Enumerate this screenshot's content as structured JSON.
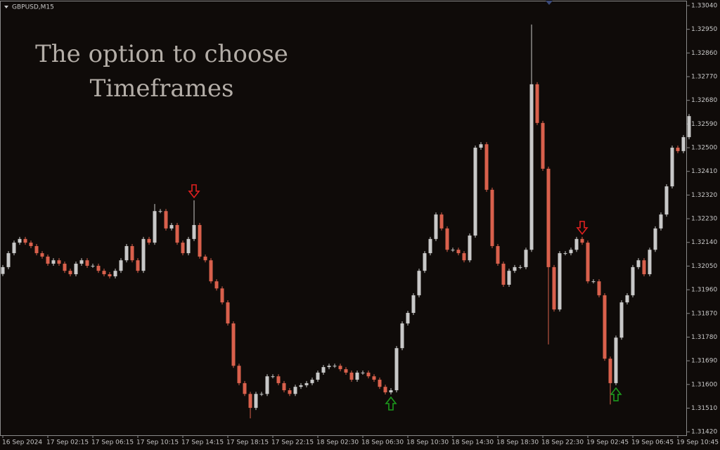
{
  "chart_data": {
    "type": "candlestick",
    "symbol_label": "GBPUSD,M15",
    "overlay_text": [
      "The option to choose",
      "Timeframes"
    ],
    "colors": {
      "up": "#c8c8c8",
      "down": "#d9604c",
      "signal_up": "#1c9a1c",
      "signal_down": "#e02020"
    },
    "ylim": [
      1.31407,
      1.33056
    ],
    "yticks": [
      {
        "value": 1.3304,
        "label": "1.33040"
      },
      {
        "value": 1.3295,
        "label": "1.32950"
      },
      {
        "value": 1.3286,
        "label": "1.32860"
      },
      {
        "value": 1.3277,
        "label": "1.32770"
      },
      {
        "value": 1.3268,
        "label": "1.32680"
      },
      {
        "value": 1.3259,
        "label": "1.32590"
      },
      {
        "value": 1.325,
        "label": "1.32500"
      },
      {
        "value": 1.3241,
        "label": "1.32410"
      },
      {
        "value": 1.3232,
        "label": "1.32320"
      },
      {
        "value": 1.3223,
        "label": "1.32230"
      },
      {
        "value": 1.3214,
        "label": "1.32140"
      },
      {
        "value": 1.3205,
        "label": "1.32050"
      },
      {
        "value": 1.3196,
        "label": "1.31960"
      },
      {
        "value": 1.3187,
        "label": "1.31870"
      },
      {
        "value": 1.3178,
        "label": "1.31780"
      },
      {
        "value": 1.3169,
        "label": "1.31690"
      },
      {
        "value": 1.316,
        "label": "1.31600"
      },
      {
        "value": 1.3151,
        "label": "1.31510"
      },
      {
        "value": 1.3142,
        "label": "1.31420"
      }
    ],
    "categories": [
      "16 Sep 2024",
      null,
      null,
      null,
      null,
      null,
      null,
      null,
      "17 Sep 02:15",
      null,
      null,
      null,
      null,
      null,
      null,
      null,
      "17 Sep 06:15",
      null,
      null,
      null,
      null,
      null,
      null,
      null,
      "17 Sep 10:15",
      null,
      null,
      null,
      null,
      null,
      null,
      null,
      "17 Sep 14:15",
      null,
      null,
      null,
      null,
      null,
      null,
      null,
      "17 Sep 18:15",
      null,
      null,
      null,
      null,
      null,
      null,
      null,
      "17 Sep 22:15",
      null,
      null,
      null,
      null,
      null,
      null,
      null,
      "18 Sep 02:30",
      null,
      null,
      null,
      null,
      null,
      null,
      null,
      "18 Sep 06:30",
      null,
      null,
      null,
      null,
      null,
      null,
      null,
      "18 Sep 10:30",
      null,
      null,
      null,
      null,
      null,
      null,
      null,
      "18 Sep 14:30",
      null,
      null,
      null,
      null,
      null,
      null,
      null,
      "18 Sep 18:30",
      null,
      null,
      null,
      null,
      null,
      null,
      null,
      "18 Sep 22:30",
      null,
      null,
      null,
      null,
      null,
      null,
      null,
      "19 Sep 02:45",
      null,
      null,
      null,
      null,
      null,
      null,
      null,
      "19 Sep 06:45",
      null,
      null,
      null,
      null,
      null,
      null,
      null,
      "19 Sep 10:45",
      null,
      null
    ],
    "candles": [
      [
        1.3202,
        1.32054,
        1.32012,
        1.32046
      ],
      [
        1.32046,
        1.32107,
        1.32038,
        1.32099
      ],
      [
        1.32099,
        1.32147,
        1.32091,
        1.32139
      ],
      [
        1.32139,
        1.32161,
        1.32131,
        1.32153
      ],
      [
        1.32153,
        1.32161,
        1.32131,
        1.32139
      ],
      [
        1.32139,
        1.32147,
        1.32118,
        1.32126
      ],
      [
        1.32126,
        1.32134,
        1.32091,
        1.32099
      ],
      [
        1.32099,
        1.32107,
        1.32078,
        1.32086
      ],
      [
        1.32086,
        1.32094,
        1.32051,
        1.32059
      ],
      [
        1.32059,
        1.3208,
        1.32051,
        1.32072
      ],
      [
        1.32072,
        1.3208,
        1.32051,
        1.32059
      ],
      [
        1.32059,
        1.32067,
        1.32024,
        1.32032
      ],
      [
        1.32032,
        1.3204,
        1.32011,
        1.32019
      ],
      [
        1.32019,
        1.32067,
        1.32011,
        1.32059
      ],
      [
        1.32059,
        1.3208,
        1.32051,
        1.32072
      ],
      [
        1.32072,
        1.3208,
        1.32043,
        1.32051
      ],
      [
        1.32051,
        1.32059,
        1.32043,
        1.32051
      ],
      [
        1.32051,
        1.32059,
        1.32024,
        1.32032
      ],
      [
        1.32032,
        1.3204,
        1.32011,
        1.32019
      ],
      [
        1.32019,
        1.32027,
        1.32003,
        1.32011
      ],
      [
        1.32011,
        1.3204,
        1.32003,
        1.32032
      ],
      [
        1.32032,
        1.3208,
        1.32024,
        1.32072
      ],
      [
        1.32072,
        1.32134,
        1.32064,
        1.32126
      ],
      [
        1.32126,
        1.32134,
        1.32064,
        1.32072
      ],
      [
        1.32072,
        1.3208,
        1.32024,
        1.32032
      ],
      [
        1.32032,
        1.32161,
        1.32024,
        1.32153
      ],
      [
        1.32153,
        1.32161,
        1.32131,
        1.32139
      ],
      [
        1.32139,
        1.32286,
        1.32131,
        1.32259
      ],
      [
        1.32259,
        1.32267,
        1.32251,
        1.32259
      ],
      [
        1.32259,
        1.32267,
        1.32185,
        1.32193
      ],
      [
        1.32193,
        1.32214,
        1.32185,
        1.32206
      ],
      [
        1.32206,
        1.32214,
        1.32131,
        1.32139
      ],
      [
        1.32139,
        1.32147,
        1.32091,
        1.32099
      ],
      [
        1.32099,
        1.32161,
        1.32091,
        1.32153
      ],
      [
        1.32153,
        1.323,
        1.32145,
        1.32206
      ],
      [
        1.32206,
        1.32214,
        1.32078,
        1.32086
      ],
      [
        1.32086,
        1.32094,
        1.32064,
        1.32072
      ],
      [
        1.32072,
        1.3208,
        1.31984,
        1.31992
      ],
      [
        1.31992,
        1.32,
        1.31957,
        1.31965
      ],
      [
        1.31965,
        1.31973,
        1.31904,
        1.31912
      ],
      [
        1.31912,
        1.3192,
        1.31824,
        1.31832
      ],
      [
        1.31832,
        1.3184,
        1.31663,
        1.31671
      ],
      [
        1.31671,
        1.31679,
        1.31597,
        1.31605
      ],
      [
        1.31605,
        1.31613,
        1.31556,
        1.31564
      ],
      [
        1.31564,
        1.31572,
        1.31471,
        1.31511
      ],
      [
        1.31511,
        1.31572,
        1.31503,
        1.31564
      ],
      [
        1.31564,
        1.31572,
        1.31556,
        1.31564
      ],
      [
        1.31564,
        1.31639,
        1.31556,
        1.31631
      ],
      [
        1.31631,
        1.31639,
        1.31623,
        1.31631
      ],
      [
        1.31631,
        1.31639,
        1.31597,
        1.31605
      ],
      [
        1.31605,
        1.31613,
        1.3157,
        1.31578
      ],
      [
        1.31578,
        1.31586,
        1.31556,
        1.31564
      ],
      [
        1.31564,
        1.31599,
        1.31556,
        1.31591
      ],
      [
        1.31591,
        1.31605,
        1.31583,
        1.31597
      ],
      [
        1.31597,
        1.31613,
        1.31589,
        1.31605
      ],
      [
        1.31605,
        1.31626,
        1.31597,
        1.31618
      ],
      [
        1.31618,
        1.31653,
        1.3161,
        1.31645
      ],
      [
        1.31645,
        1.31674,
        1.31637,
        1.31666
      ],
      [
        1.31666,
        1.31679,
        1.31658,
        1.31671
      ],
      [
        1.31671,
        1.31679,
        1.31663,
        1.31671
      ],
      [
        1.31671,
        1.31679,
        1.3165,
        1.31658
      ],
      [
        1.31658,
        1.31666,
        1.31637,
        1.31645
      ],
      [
        1.31645,
        1.31653,
        1.3161,
        1.31618
      ],
      [
        1.31618,
        1.31653,
        1.3161,
        1.31645
      ],
      [
        1.31645,
        1.31653,
        1.31637,
        1.31645
      ],
      [
        1.31645,
        1.31653,
        1.31623,
        1.31631
      ],
      [
        1.31631,
        1.31639,
        1.3161,
        1.31618
      ],
      [
        1.31618,
        1.31626,
        1.31583,
        1.31591
      ],
      [
        1.31591,
        1.31599,
        1.31562,
        1.3157
      ],
      [
        1.3157,
        1.31586,
        1.31562,
        1.31578
      ],
      [
        1.31578,
        1.31746,
        1.3157,
        1.31738
      ],
      [
        1.31738,
        1.3184,
        1.3173,
        1.31832
      ],
      [
        1.31832,
        1.3188,
        1.31824,
        1.31872
      ],
      [
        1.31872,
        1.31947,
        1.31864,
        1.31939
      ],
      [
        1.31939,
        1.3204,
        1.31931,
        1.32032
      ],
      [
        1.32032,
        1.32107,
        1.32024,
        1.32099
      ],
      [
        1.32099,
        1.32161,
        1.32091,
        1.32153
      ],
      [
        1.32153,
        1.32254,
        1.32145,
        1.32246
      ],
      [
        1.32246,
        1.32254,
        1.32185,
        1.32193
      ],
      [
        1.32193,
        1.32201,
        1.32104,
        1.32112
      ],
      [
        1.32112,
        1.3212,
        1.32104,
        1.32112
      ],
      [
        1.32112,
        1.3212,
        1.32091,
        1.32099
      ],
      [
        1.32099,
        1.32107,
        1.32064,
        1.32072
      ],
      [
        1.32072,
        1.32174,
        1.32064,
        1.32166
      ],
      [
        1.32166,
        1.32508,
        1.32158,
        1.325
      ],
      [
        1.325,
        1.32521,
        1.32492,
        1.32513
      ],
      [
        1.32513,
        1.32521,
        1.32332,
        1.3234
      ],
      [
        1.3234,
        1.32348,
        1.32118,
        1.32126
      ],
      [
        1.32126,
        1.32134,
        1.32051,
        1.32059
      ],
      [
        1.32059,
        1.32067,
        1.31971,
        1.31979
      ],
      [
        1.31979,
        1.3204,
        1.31971,
        1.32032
      ],
      [
        1.32032,
        1.32054,
        1.32024,
        1.32046
      ],
      [
        1.32046,
        1.32054,
        1.32038,
        1.32046
      ],
      [
        1.32046,
        1.3212,
        1.32038,
        1.32112
      ],
      [
        1.32112,
        1.32968,
        1.32104,
        1.32741
      ],
      [
        1.32741,
        1.32749,
        1.32586,
        1.32594
      ],
      [
        1.32594,
        1.32602,
        1.32412,
        1.3242
      ],
      [
        1.3242,
        1.32428,
        1.31752,
        1.32046
      ],
      [
        1.32046,
        1.32054,
        1.31877,
        1.31885
      ],
      [
        1.31885,
        1.32107,
        1.31877,
        1.32099
      ],
      [
        1.32099,
        1.32107,
        1.32091,
        1.32099
      ],
      [
        1.32099,
        1.3212,
        1.32091,
        1.32112
      ],
      [
        1.32112,
        1.32161,
        1.32104,
        1.32153
      ],
      [
        1.32153,
        1.32161,
        1.32131,
        1.32139
      ],
      [
        1.32139,
        1.32147,
        1.31984,
        1.31992
      ],
      [
        1.31992,
        1.32,
        1.31984,
        1.31992
      ],
      [
        1.31992,
        1.32,
        1.31931,
        1.31939
      ],
      [
        1.31939,
        1.31947,
        1.3169,
        1.31698
      ],
      [
        1.31698,
        1.31706,
        1.31524,
        1.31605
      ],
      [
        1.31605,
        1.31786,
        1.31597,
        1.31778
      ],
      [
        1.31778,
        1.3192,
        1.3177,
        1.31912
      ],
      [
        1.31912,
        1.31947,
        1.31904,
        1.31939
      ],
      [
        1.31939,
        1.32054,
        1.31931,
        1.32046
      ],
      [
        1.32046,
        1.3208,
        1.32038,
        1.32072
      ],
      [
        1.32072,
        1.3208,
        1.32011,
        1.32019
      ],
      [
        1.32019,
        1.3212,
        1.32011,
        1.32112
      ],
      [
        1.32112,
        1.32201,
        1.32104,
        1.32193
      ],
      [
        1.32193,
        1.32254,
        1.32185,
        1.32246
      ],
      [
        1.32246,
        1.32361,
        1.32238,
        1.32353
      ],
      [
        1.32353,
        1.32508,
        1.32345,
        1.325
      ],
      [
        1.325,
        1.32508,
        1.32479,
        1.32487
      ],
      [
        1.32487,
        1.32548,
        1.32479,
        1.3254
      ],
      [
        1.3254,
        1.32628,
        1.32532,
        1.3262
      ]
    ],
    "signals": [
      {
        "candle": 34,
        "direction": "down"
      },
      {
        "candle": 69,
        "direction": "up"
      },
      {
        "candle": 103,
        "direction": "down"
      },
      {
        "candle": 109,
        "direction": "up"
      }
    ]
  }
}
